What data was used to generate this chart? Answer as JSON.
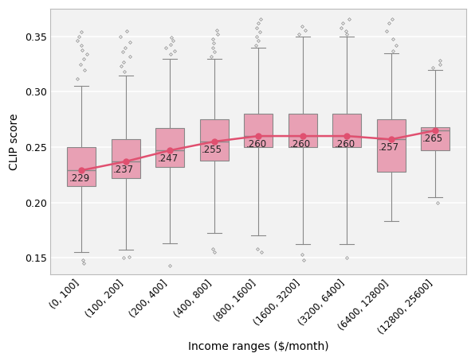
{
  "categories": [
    "(0, 100]",
    "(100, 200]",
    "(200, 400]",
    "(400, 800]",
    "(800, 1600]",
    "(1600, 3200]",
    "(3200, 6400]",
    "(6400, 12800]",
    "(12800, 25600]"
  ],
  "medians": [
    0.229,
    0.237,
    0.247,
    0.255,
    0.26,
    0.26,
    0.26,
    0.257,
    0.265
  ],
  "q1": [
    0.215,
    0.222,
    0.232,
    0.238,
    0.25,
    0.25,
    0.25,
    0.228,
    0.247
  ],
  "q3": [
    0.25,
    0.257,
    0.267,
    0.275,
    0.28,
    0.28,
    0.28,
    0.275,
    0.268
  ],
  "whisker_low": [
    0.155,
    0.157,
    0.163,
    0.172,
    0.17,
    0.162,
    0.162,
    0.183,
    0.205
  ],
  "whisker_high": [
    0.305,
    0.315,
    0.33,
    0.33,
    0.34,
    0.35,
    0.35,
    0.335,
    0.32
  ],
  "box_color": "#e8a0b4",
  "box_edgecolor": "#888888",
  "median_line_color": "#888888",
  "line_color": "#e05070",
  "marker_color": "#e05070",
  "flier_color": "#888888",
  "whisker_color": "#888888",
  "cap_color": "#888888",
  "ylabel": "CLIP score",
  "xlabel": "Income ranges ($/month)",
  "ylim": [
    0.135,
    0.375
  ],
  "yticks": [
    0.15,
    0.2,
    0.25,
    0.3,
    0.35
  ],
  "background_color": "#f2f2f2",
  "grid_color": "#ffffff"
}
